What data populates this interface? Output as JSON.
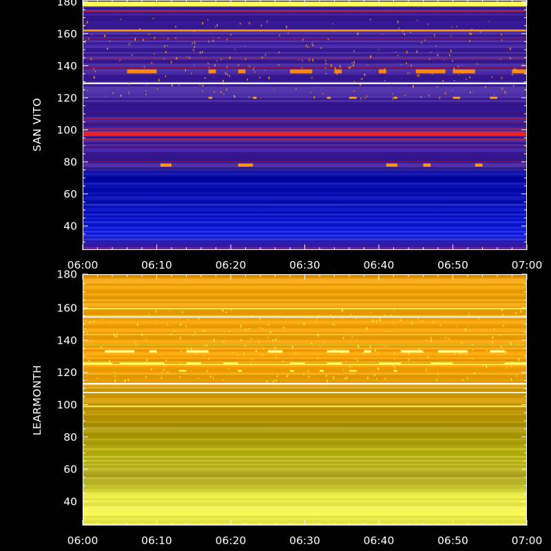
{
  "chart_data": [
    {
      "type": "heatmap",
      "ylabel": "SAN VITO",
      "ylim": [
        25,
        181
      ],
      "xlim": [
        "06:00",
        "07:00"
      ],
      "x_ticks": [
        "06:00",
        "06:10",
        "06:20",
        "06:30",
        "06:40",
        "06:50",
        "07:00"
      ],
      "y_ticks": [
        40,
        60,
        80,
        100,
        120,
        140,
        160,
        180
      ],
      "colormap": [
        "#0000aa",
        "#4422bb",
        "#3a1a9e",
        "#aa1133",
        "#ee2222",
        "#ff8800",
        "#ffee66",
        "#ffffff"
      ],
      "colors": {
        "low_band_top": "#0000a0",
        "low_band_mid": "#0a1aee",
        "upper_background": "#3a1a9e",
        "strong_line": "#dd2222",
        "bright_line": "#ffffff",
        "spike": "#ffaa00",
        "top_edge": "#ffff44"
      },
      "horizontal_lines": [
        {
          "y": 178.5,
          "h": 3,
          "color": "#ffff55",
          "opacity": 1
        },
        {
          "y": 174,
          "h": 0.8,
          "color": "#cc2222",
          "opacity": 0.9
        },
        {
          "y": 162,
          "h": 1.2,
          "color": "#ff9900",
          "opacity": 1
        },
        {
          "y": 157,
          "h": 0.6,
          "color": "#aa1133",
          "opacity": 0.8
        },
        {
          "y": 145,
          "h": 0.6,
          "color": "#cc2222",
          "opacity": 0.8
        },
        {
          "y": 138.5,
          "h": 0.8,
          "color": "#aa1133",
          "opacity": 0.7
        },
        {
          "y": 129,
          "h": 1.0,
          "color": "#ffffff",
          "opacity": 1
        },
        {
          "y": 107,
          "h": 0.8,
          "color": "#aa1133",
          "opacity": 0.8
        },
        {
          "y": 104.5,
          "h": 0.6,
          "color": "#881144",
          "opacity": 0.7
        },
        {
          "y": 100.5,
          "h": 0.8,
          "color": "#cc2222",
          "opacity": 0.8
        },
        {
          "y": 97.5,
          "h": 3.0,
          "color": "#ee2222",
          "opacity": 0.95
        },
        {
          "y": 94,
          "h": 1.0,
          "color": "#cc2222",
          "opacity": 0.85
        },
        {
          "y": 90,
          "h": 0.6,
          "color": "#aa1133",
          "opacity": 0.7
        },
        {
          "y": 80,
          "h": 0.6,
          "color": "#aa1133",
          "opacity": 0.7
        },
        {
          "y": 26,
          "h": 1.5,
          "color": "#8822aa",
          "opacity": 0.8
        }
      ],
      "spike_rows": [
        {
          "y": 136.5,
          "h": 2.5,
          "segments": [
            [
              6,
              10
            ],
            [
              17,
              18
            ],
            [
              21,
              22
            ],
            [
              28,
              31
            ],
            [
              34,
              35
            ],
            [
              40,
              41
            ],
            [
              45,
              49
            ],
            [
              50,
              53
            ],
            [
              58,
              60
            ]
          ],
          "color": "#ff8800"
        },
        {
          "y": 78,
          "h": 2,
          "segments": [
            [
              10.5,
              12
            ],
            [
              21,
              23
            ],
            [
              41,
              42.5
            ],
            [
              46,
              47
            ],
            [
              53,
              54
            ]
          ],
          "color": "#ff9900"
        },
        {
          "y": 120,
          "h": 1.2,
          "segments": [
            [
              17,
              17.5
            ],
            [
              23,
              23.5
            ],
            [
              33,
              33.5
            ],
            [
              36,
              37
            ],
            [
              42,
              42.5
            ],
            [
              50,
              51
            ],
            [
              55,
              56
            ]
          ],
          "color": "#ffaa00"
        }
      ]
    },
    {
      "type": "heatmap",
      "ylabel": "LEARMONTH",
      "ylim": [
        25,
        181
      ],
      "xlim": [
        "06:00",
        "07:00"
      ],
      "x_ticks": [
        "06:00",
        "06:10",
        "06:20",
        "06:30",
        "06:40",
        "06:50",
        "07:00"
      ],
      "y_ticks": [
        40,
        60,
        80,
        100,
        120,
        140,
        160,
        180
      ],
      "colormap": [
        "#ffff66",
        "#cccc22",
        "#aaa000",
        "#bb9900",
        "#e09a00",
        "#ffaa00",
        "#ffffff"
      ],
      "colors": {
        "upper_background": "#ffaa00",
        "mid_background": "#b09800",
        "low_background": "#ffff55",
        "bright_line": "#ffffff",
        "spike": "#ffff66"
      },
      "horizontal_lines": [
        {
          "y": 159.5,
          "h": 0.8,
          "color": "#ffff66",
          "opacity": 0.9
        },
        {
          "y": 154.5,
          "h": 0.8,
          "color": "#ffffff",
          "opacity": 1
        },
        {
          "y": 143.5,
          "h": 0.6,
          "color": "#ffe066",
          "opacity": 0.9
        },
        {
          "y": 137,
          "h": 0.8,
          "color": "#cccc33",
          "opacity": 0.8
        },
        {
          "y": 125,
          "h": 0.8,
          "color": "#ffff55",
          "opacity": 0.9
        },
        {
          "y": 113,
          "h": 1.0,
          "color": "#ffffff",
          "opacity": 1
        },
        {
          "y": 110.5,
          "h": 0.6,
          "color": "#ffe066",
          "opacity": 0.8
        },
        {
          "y": 107.5,
          "h": 0.8,
          "color": "#ffffff",
          "opacity": 1
        },
        {
          "y": 99,
          "h": 1.0,
          "color": "#ffee66",
          "opacity": 0.8
        },
        {
          "y": 96,
          "h": 0.6,
          "color": "#ddaa22",
          "opacity": 0.7
        }
      ],
      "spike_rows": [
        {
          "y": 133,
          "h": 1.6,
          "segments": [
            [
              3,
              7
            ],
            [
              9,
              10
            ],
            [
              14,
              17
            ],
            [
              25,
              27
            ],
            [
              33,
              36
            ],
            [
              38,
              39
            ],
            [
              43,
              46
            ],
            [
              48,
              52
            ],
            [
              55,
              57
            ]
          ],
          "color": "#ffff88"
        },
        {
          "y": 125.5,
          "h": 1.4,
          "segments": [
            [
              0,
              4
            ],
            [
              5,
              11
            ],
            [
              14,
              16
            ],
            [
              19,
              21
            ],
            [
              28,
              30
            ],
            [
              33,
              35
            ],
            [
              40,
              43
            ],
            [
              47,
              50
            ],
            [
              57,
              60
            ]
          ],
          "color": "#ffff66"
        },
        {
          "y": 121,
          "h": 1.0,
          "segments": [
            [
              13,
              14
            ],
            [
              21,
              21.5
            ],
            [
              28,
              28.5
            ],
            [
              32,
              32.5
            ],
            [
              36,
              37
            ],
            [
              42,
              42.5
            ]
          ],
          "color": "#ffff66"
        }
      ]
    }
  ]
}
